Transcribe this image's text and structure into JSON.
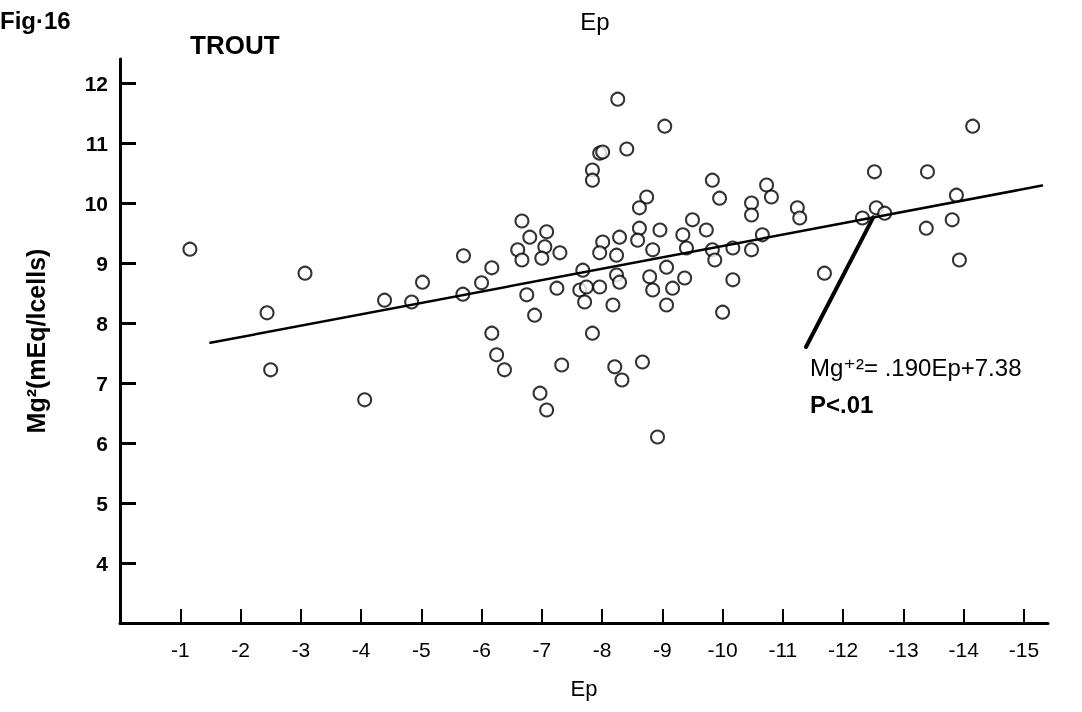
{
  "chart_data": {
    "type": "scatter",
    "title": "Ep",
    "xlabel": "Ep",
    "ylabel": "Mg²(mEq/lcells)",
    "annotations": [
      "Fig·16",
      "TROUT",
      {
        "text": "Mg⁺²= .190Ep+7.38",
        "x": -12.5,
        "y": 9.76
      },
      "P<.01"
    ],
    "xlim": [
      0,
      -15.4
    ],
    "xticks": [
      -1,
      -2,
      -3,
      -4,
      -5,
      -6,
      -7,
      -8,
      -9,
      -10,
      -11,
      -12,
      -13,
      -14,
      -15
    ],
    "ylim": [
      3,
      12.4
    ],
    "yticks": [
      4,
      5,
      6,
      7,
      8,
      9,
      10,
      11,
      12
    ],
    "grid": false,
    "marker": "circle",
    "series": [
      {
        "color": "#000000",
        "x": [
          -1.16,
          -2.44,
          -2.5,
          -3.07,
          -4.06,
          -4.39,
          -4.84,
          -5.02,
          -5.7,
          -5.69,
          -6.0,
          -6.17,
          -6.17,
          -6.25,
          -6.38,
          -6.67,
          -6.8,
          -7.08,
          -7.05,
          -6.6,
          -6.67,
          -7.0,
          -7.3,
          -6.75,
          -7.25,
          -6.88,
          -7.68,
          -7.63,
          -7.71,
          -7.84,
          -7.84,
          -7.84,
          -7.96,
          -7.33,
          -6.97,
          -7.08,
          -8.26,
          -9.04,
          -8.01,
          -8.41,
          -9.83,
          -9.95,
          -8.74,
          -8.62,
          -8.62,
          -8.96,
          -8.59,
          -8.29,
          -8.01,
          -7.96,
          -8.24,
          -8.84,
          -9.5,
          -9.73,
          -9.34,
          -9.4,
          -9.83,
          -10.17,
          -10.48,
          -10.66,
          -10.48,
          -10.48,
          -10.73,
          -10.81,
          -11.24,
          -11.28,
          -12.52,
          -12.32,
          -12.55,
          -12.69,
          -13.4,
          -14.15,
          -13.88,
          -13.38,
          -13.81,
          -13.93,
          -11.69,
          -7.74,
          -8.24,
          -8.29,
          -8.18,
          -7.96,
          -8.79,
          -9.07,
          -8.84,
          -9.07,
          -9.17,
          -9.37,
          -10.17,
          -10.0,
          -9.87,
          -8.21,
          -8.33,
          -8.67,
          -8.92
        ],
        "values": [
          9.23,
          8.17,
          7.22,
          8.83,
          6.72,
          8.38,
          8.35,
          8.68,
          9.12,
          8.48,
          8.67,
          8.92,
          7.83,
          7.47,
          7.22,
          9.7,
          9.43,
          9.52,
          9.27,
          9.22,
          9.05,
          9.08,
          9.17,
          8.47,
          8.58,
          8.13,
          8.88,
          8.55,
          8.35,
          7.83,
          10.55,
          10.38,
          10.83,
          7.3,
          6.83,
          6.55,
          11.73,
          11.28,
          10.85,
          10.9,
          10.38,
          10.08,
          10.1,
          9.92,
          9.58,
          9.55,
          9.38,
          9.43,
          9.35,
          9.17,
          9.13,
          9.22,
          9.72,
          9.55,
          9.47,
          9.25,
          9.22,
          9.25,
          9.22,
          9.47,
          10.0,
          9.8,
          10.3,
          10.1,
          9.92,
          9.75,
          10.52,
          9.75,
          9.92,
          9.83,
          10.52,
          11.28,
          10.13,
          9.58,
          9.72,
          9.05,
          8.83,
          8.6,
          8.8,
          8.68,
          8.3,
          8.6,
          8.77,
          8.93,
          8.55,
          8.3,
          8.58,
          8.75,
          8.72,
          8.18,
          9.05,
          7.27,
          7.05,
          7.35,
          6.1
        ]
      },
      {
        "type": "line",
        "color": "#000000",
        "marker": "none",
        "x": [
          -1.5,
          -15.3
        ],
        "values": [
          7.67,
          10.29
        ]
      }
    ]
  }
}
